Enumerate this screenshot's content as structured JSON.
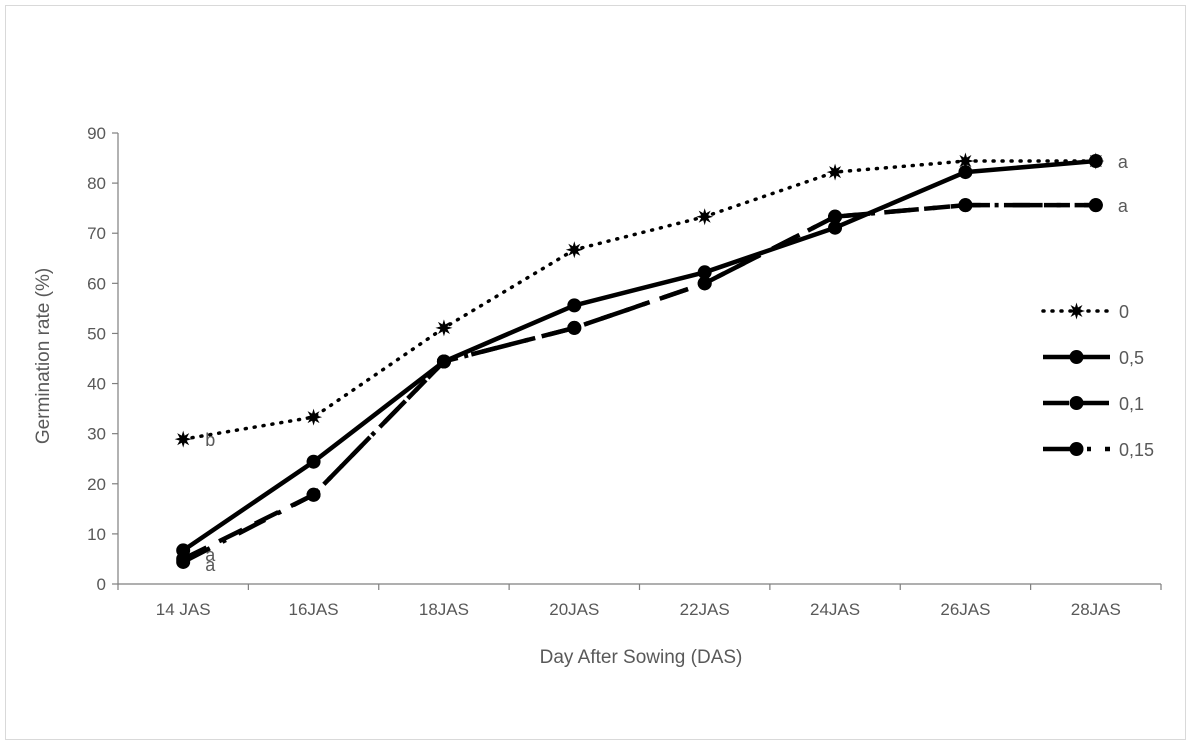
{
  "chart_data": {
    "type": "line",
    "title": "",
    "xlabel": "Day After Sowing (DAS)",
    "ylabel": "Germination rate (%)",
    "ylim": [
      0,
      90
    ],
    "yticks": [
      0,
      10,
      20,
      30,
      40,
      50,
      60,
      70,
      80,
      90
    ],
    "grid": false,
    "legend_position": "right",
    "categories": [
      "14 JAS",
      "16JAS",
      "18JAS",
      "20JAS",
      "22JAS",
      "24JAS",
      "26JAS",
      "28JAS"
    ],
    "series": [
      {
        "name": "0",
        "values": [
          28.9,
          33.3,
          51.1,
          66.7,
          73.3,
          82.2,
          84.4,
          84.4
        ],
        "line_style": "dotted",
        "marker": "star",
        "color": "#000000"
      },
      {
        "name": "0,5",
        "values": [
          6.7,
          24.4,
          44.4,
          55.6,
          62.2,
          71.1,
          82.2,
          84.4
        ],
        "line_style": "solid",
        "marker": "circle",
        "color": "#000000"
      },
      {
        "name": "0,1",
        "values": [
          5.0,
          17.8,
          44.4,
          51.1,
          60.0,
          73.3,
          75.6,
          75.6
        ],
        "line_style": "dashed",
        "marker": "circle",
        "color": "#000000"
      },
      {
        "name": "0,15",
        "values": [
          4.4,
          17.8,
          44.4,
          51.1,
          60.0,
          73.3,
          75.6,
          75.6
        ],
        "line_style": "dash-dot",
        "marker": "circle",
        "color": "#000000"
      }
    ],
    "annotations": [
      {
        "text": "b",
        "category": "14 JAS",
        "y": 28.9
      },
      {
        "text": "a",
        "category": "14 JAS",
        "y": 6.0
      },
      {
        "text": "a",
        "category": "14 JAS",
        "y": 4.0
      },
      {
        "text": "a",
        "category": "28JAS",
        "y": 84.4
      },
      {
        "text": "a",
        "category": "28JAS",
        "y": 75.6
      }
    ]
  }
}
